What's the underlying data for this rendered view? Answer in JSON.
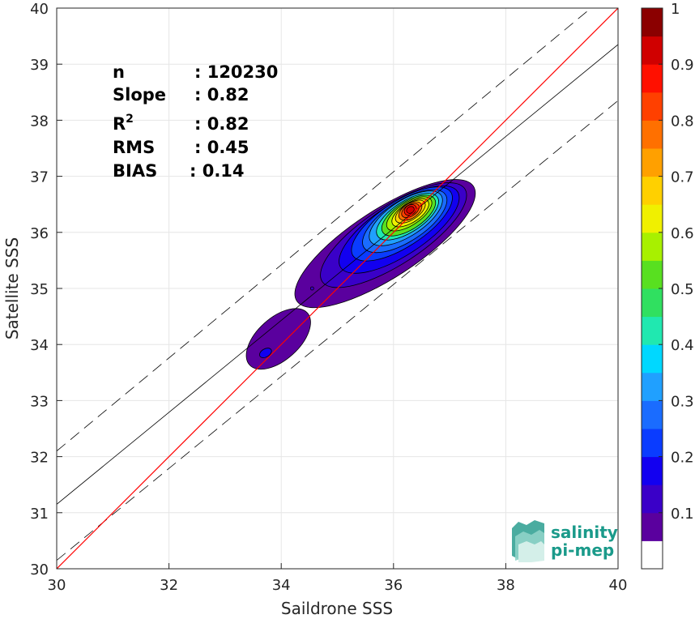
{
  "chart_data": {
    "type": "scatter",
    "title": "",
    "xlabel": "Saildrone SSS",
    "ylabel": "Satellite SSS",
    "xlim": [
      30,
      40
    ],
    "ylim": [
      30,
      40
    ],
    "xticks": [
      "30",
      "32",
      "34",
      "36",
      "38",
      "40"
    ],
    "yticks": [
      "30",
      "31",
      "32",
      "33",
      "34",
      "35",
      "36",
      "37",
      "38",
      "39",
      "40"
    ],
    "grid": true,
    "stats": [
      {
        "label": "n",
        "value": ": 120230"
      },
      {
        "label": "Slope",
        "value": ": 0.82"
      },
      {
        "label": "R",
        "sup": "2",
        "value": ": 0.82"
      },
      {
        "label": "RMS",
        "value": ": 0.45"
      },
      {
        "label": "BIAS",
        "value": ": 0.14"
      }
    ],
    "lines": {
      "one_to_one": {
        "x": [
          30,
          40
        ],
        "y": [
          30,
          40
        ],
        "color": "#ff0000"
      },
      "fit": {
        "x": [
          30,
          40
        ],
        "y": [
          31.15,
          39.35
        ],
        "color": "#000000"
      },
      "upper_bound": {
        "x": [
          30,
          40
        ],
        "y": [
          32.1,
          40.4
        ],
        "style": "dashed"
      },
      "lower_bound": {
        "x": [
          30,
          40
        ],
        "y": [
          30.15,
          38.35
        ],
        "style": "dashed"
      }
    },
    "density_peak": {
      "x": 36.3,
      "y": 36.4
    },
    "colorbar": {
      "ticks": [
        "0.1",
        "0.2",
        "0.3",
        "0.4",
        "0.5",
        "0.6",
        "0.7",
        "0.8",
        "0.9",
        "1"
      ],
      "range": [
        0,
        1
      ],
      "colors": [
        "#ffffff",
        "#5a009e",
        "#3a00c8",
        "#1200f0",
        "#0a3cff",
        "#1a6cff",
        "#20a0ff",
        "#00d8ff",
        "#20e8b0",
        "#30e060",
        "#58e020",
        "#a8f000",
        "#f0f000",
        "#ffd000",
        "#ffa000",
        "#ff7000",
        "#ff4000",
        "#ff1000",
        "#d00000",
        "#8b0000"
      ]
    }
  },
  "logo": {
    "line1": "salinity",
    "line2": "pi-mep"
  }
}
